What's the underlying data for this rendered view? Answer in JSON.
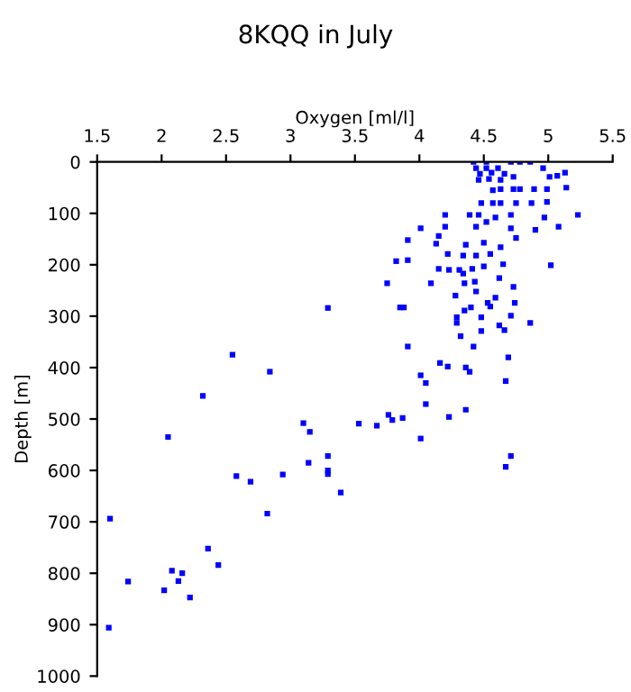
{
  "chart_data": {
    "type": "scatter",
    "title": "8KQQ in July",
    "xlabel": "Oxygen [ml/l]",
    "ylabel": "Depth [m]",
    "xlim": [
      1.5,
      5.5
    ],
    "xticks": [
      1.5,
      2,
      2.5,
      3,
      3.5,
      4,
      4.5,
      5,
      5.5
    ],
    "ylim": [
      1000,
      0
    ],
    "yticks": [
      0,
      100,
      200,
      300,
      400,
      500,
      600,
      700,
      800,
      900,
      1000
    ],
    "marker": "square",
    "grid": false,
    "series": [
      {
        "color": "#0000ff",
        "x": [
          1.59,
          1.74,
          2.02,
          2.08,
          2.13,
          2.16,
          2.22,
          2.36,
          2.44,
          3.29,
          3.85,
          3.88,
          4.29,
          4.29,
          4.35,
          4.4,
          4.48,
          4.55,
          4.62,
          4.66,
          4.71,
          4.86,
          4.48,
          4.32,
          4.42,
          3.91,
          2.55,
          4.69,
          4.16,
          4.22,
          4.36,
          4.39,
          2.84,
          4.01,
          4.05,
          4.67,
          2.32,
          4.05,
          4.23,
          4.36,
          3.76,
          3.79,
          3.87,
          3.1,
          3.15,
          3.53,
          3.67,
          4.01,
          2.05,
          3.29,
          3.14,
          3.29,
          3.29,
          2.94,
          2.58,
          2.69,
          3.39,
          4.71,
          4.67,
          2.82,
          1.6,
          4.42,
          4.52,
          4.71,
          4.78,
          4.86,
          4.44,
          4.52,
          4.61,
          4.47,
          4.56,
          4.66,
          4.46,
          4.54,
          4.63,
          4.73,
          4.96,
          5.01,
          5.07,
          5.13,
          5.14,
          4.57,
          4.63,
          4.73,
          4.78,
          4.89,
          4.99,
          4.48,
          4.57,
          4.63,
          4.75,
          4.87,
          4.99,
          4.2,
          4.39,
          4.46,
          4.59,
          4.71,
          4.97,
          5.23,
          4.01,
          4.2,
          4.44,
          4.52,
          4.71,
          4.9,
          5.08,
          4.15,
          4.13,
          3.91,
          4.36,
          4.5,
          4.75,
          4.63,
          4.22,
          4.34,
          4.44,
          4.55,
          3.82,
          3.91,
          4.15,
          4.23,
          4.31,
          4.41,
          4.5,
          4.65,
          5.02,
          3.75,
          4.09,
          4.34,
          4.35,
          4.43,
          4.62,
          4.73,
          4.28,
          4.44,
          4.59,
          4.74,
          4.53
        ],
        "values": [
          906,
          816,
          833,
          795,
          815,
          800,
          847,
          752,
          784,
          284,
          283,
          283,
          302,
          313,
          289,
          283,
          302,
          281,
          318,
          327,
          299,
          313,
          329,
          339,
          359,
          359,
          375,
          380,
          391,
          398,
          400,
          408,
          408,
          415,
          430,
          426,
          455,
          471,
          496,
          482,
          492,
          502,
          498,
          508,
          525,
          509,
          513,
          538,
          535,
          572,
          585,
          600,
          607,
          608,
          611,
          622,
          643,
          572,
          593,
          684,
          694,
          0,
          0,
          0,
          0,
          0,
          12,
          12,
          12,
          23,
          21,
          23,
          35,
          33,
          35,
          29,
          12,
          29,
          27,
          21,
          50,
          55,
          53,
          53,
          53,
          53,
          53,
          80,
          80,
          80,
          80,
          80,
          78,
          103,
          103,
          103,
          108,
          103,
          108,
          103,
          129,
          126,
          126,
          117,
          129,
          132,
          126,
          144,
          159,
          152,
          161,
          157,
          148,
          166,
          179,
          182,
          182,
          179,
          193,
          191,
          208,
          210,
          210,
          208,
          203,
          199,
          201,
          236,
          236,
          217,
          236,
          233,
          226,
          243,
          260,
          252,
          264,
          274,
          274
        ]
      }
    ]
  }
}
